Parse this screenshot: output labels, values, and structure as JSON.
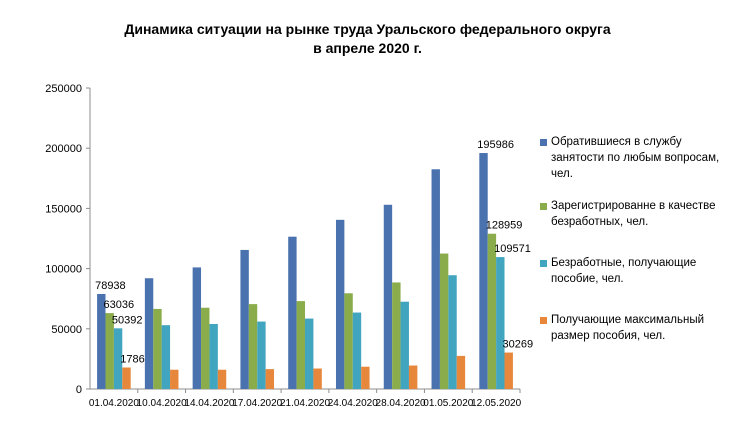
{
  "chart_data": {
    "type": "bar",
    "title": "Динамика ситуации  на рынке труда Уральского федерального округа",
    "subtitle": "в апреле 2020 г.",
    "categories": [
      "01.04.2020",
      "10.04.2020",
      "14.04.2020",
      "17.04.2020",
      "21.04.2020",
      "24.04.2020",
      "28.04.2020",
      "01.05.2020",
      "12.05.2020"
    ],
    "ylim": [
      0,
      250000
    ],
    "yticks": [
      "0",
      "50000",
      "100000",
      "150000",
      "200000",
      "250000"
    ],
    "grid": false,
    "legend_position": "right",
    "series": [
      {
        "name": "Обратившиеся в службу занятости по любым вопросам, чел.",
        "color": "#4a72ae",
        "values": [
          78938,
          92000,
          101000,
          115500,
          126500,
          140500,
          153000,
          182500,
          195986
        ],
        "labels": [
          "78938",
          "",
          "",
          "",
          "",
          "",
          "",
          "",
          "195986"
        ]
      },
      {
        "name": "Зарегистрированне в качестве безработных, чел.",
        "color": "#8aac4a",
        "values": [
          63036,
          66500,
          67500,
          70500,
          73000,
          79500,
          88500,
          112500,
          128959
        ],
        "labels": [
          "63036",
          "",
          "",
          "",
          "",
          "",
          "",
          "",
          "128959"
        ]
      },
      {
        "name": "Безработные, получающие пособие, чел.",
        "color": "#42a5bf",
        "values": [
          50392,
          53000,
          54000,
          56000,
          58500,
          63500,
          72500,
          94500,
          109571
        ],
        "labels": [
          "50392",
          "",
          "",
          "",
          "",
          "",
          "",
          "",
          "109571"
        ]
      },
      {
        "name": "Получающие максимальный размер пособия, чел.",
        "color": "#e6873b",
        "values": [
          17860,
          16000,
          16000,
          16500,
          17000,
          18500,
          19500,
          27500,
          30269
        ],
        "labels": [
          "17860",
          "",
          "",
          "",
          "",
          "",
          "",
          "",
          "30269"
        ]
      }
    ]
  }
}
